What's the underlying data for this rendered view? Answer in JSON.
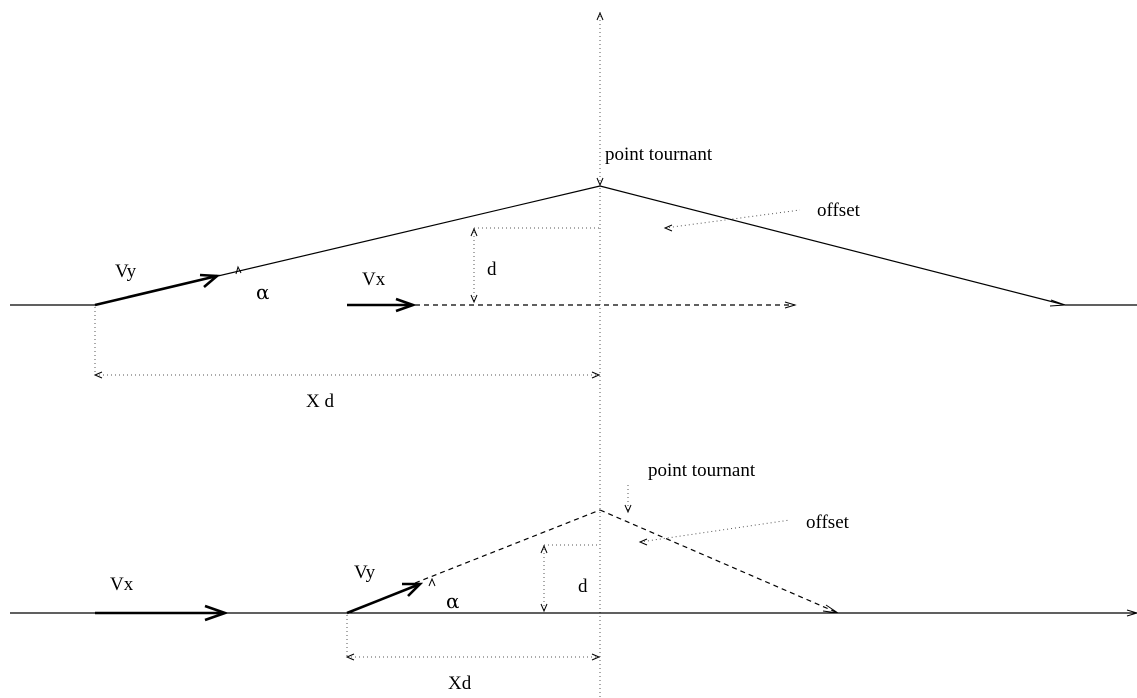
{
  "top": {
    "turning_point": "point tournant",
    "offset": "offset",
    "vy": "Vy",
    "vx": "Vx",
    "alpha": "α",
    "d": "d",
    "xd": "X d"
  },
  "bottom": {
    "turning_point": "point tournant",
    "offset": "offset",
    "vy": "Vy",
    "vx": "Vx",
    "alpha": "α",
    "d": "d",
    "xd": "Xd"
  }
}
